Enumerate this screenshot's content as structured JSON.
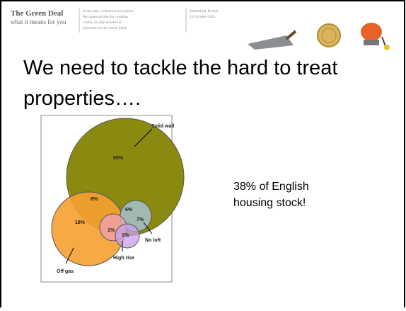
{
  "header": {
    "title": "The Green Deal",
    "subtitle": "what it means for you",
    "description": [
      "A one-day conference to explore",
      "the opportunities for creating",
      "viable, locally beneficial",
      "provision of the Green Deal"
    ],
    "venue": "Watershed, Bristol",
    "date": "13 October 2011"
  },
  "slide": {
    "title_lines": [
      "We need to tackle the hard to treat",
      "properties…."
    ],
    "callout_lines": [
      "38% of English",
      "housing stock!"
    ]
  },
  "venn": {
    "solid_wall": "Solid wall",
    "solid_wall_only": "55%",
    "solid_and_off_gas": "8%",
    "off_gas_only": "18%",
    "no_loft_value": "6%",
    "no_loft_overlap": "7%",
    "off_gas_high_rise": "1%",
    "high_rise_value": "1%",
    "no_loft": "No loft",
    "high_rise": "High rise",
    "off_gas": "Off gas"
  }
}
